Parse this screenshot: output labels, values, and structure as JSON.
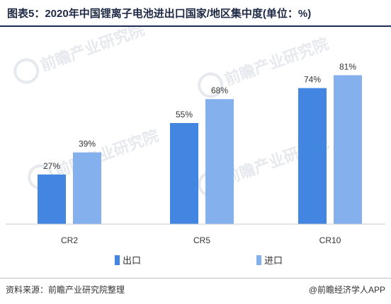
{
  "title": "图表5：2020年中国锂离子电池进出口国家/地区集中度(单位：%)",
  "source": "资料来源：前瞻产业研究院整理",
  "credit": "@前瞻经济学人APP",
  "watermark": "前瞻产业研究院",
  "colors": {
    "export": "#4286e2",
    "import": "#84b1ee",
    "axis": "#c8ccd3",
    "label": "#333333"
  },
  "chart_data": {
    "type": "bar",
    "title": "图表5：2020年中国锂离子电池进出口国家/地区集中度(单位：%)",
    "categories": [
      "CR2",
      "CR5",
      "CR10"
    ],
    "series": [
      {
        "name": "出口",
        "values": [
          27,
          55,
          74
        ]
      },
      {
        "name": "进口",
        "values": [
          39,
          68,
          81
        ]
      }
    ],
    "value_suffix": "%",
    "ylim": [
      0,
      90
    ],
    "grid": false,
    "legend": "bottom-center"
  }
}
